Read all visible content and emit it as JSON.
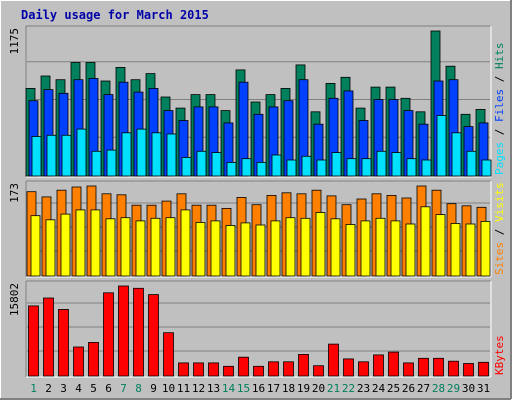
{
  "title": "Daily usage for March 2015",
  "colors": {
    "background": "#ffffff",
    "frame": "#c0c0c0",
    "panel": "#c0c0c0",
    "hits": "#00805c",
    "files": "#0040ff",
    "pages": "#00e0ff",
    "visits": "#ffff00",
    "sites": "#ff8000",
    "kbytes": "#ff0000",
    "day_weekday": "#000000",
    "day_weekend": "#00805c"
  },
  "chart_data": [
    {
      "type": "bar",
      "panel": "hits_files_pages",
      "ymax_label": "1175",
      "ylim": [
        0,
        1175
      ],
      "legend": [
        {
          "name": "Pages",
          "color": "#00e0ff"
        },
        {
          "name": "Files",
          "color": "#0040ff"
        },
        {
          "name": "Hits",
          "color": "#00805c"
        }
      ],
      "categories": [
        "1",
        "2",
        "3",
        "4",
        "5",
        "6",
        "7",
        "8",
        "9",
        "10",
        "11",
        "12",
        "13",
        "14",
        "15",
        "16",
        "17",
        "18",
        "19",
        "20",
        "21",
        "22",
        "23",
        "24",
        "25",
        "26",
        "27",
        "28",
        "29",
        "30",
        "31"
      ],
      "series": [
        {
          "name": "Hits",
          "values": [
            710,
            810,
            780,
            920,
            920,
            770,
            880,
            780,
            830,
            640,
            550,
            660,
            660,
            530,
            860,
            600,
            660,
            710,
            900,
            520,
            750,
            800,
            550,
            720,
            720,
            630,
            520,
            1175,
            890,
            500,
            540
          ]
        },
        {
          "name": "Files",
          "values": [
            610,
            700,
            670,
            780,
            790,
            660,
            760,
            680,
            710,
            530,
            450,
            560,
            560,
            430,
            760,
            500,
            560,
            610,
            780,
            420,
            630,
            690,
            450,
            620,
            620,
            530,
            420,
            770,
            780,
            400,
            430
          ]
        },
        {
          "name": "Pages",
          "values": [
            320,
            330,
            330,
            380,
            200,
            210,
            350,
            380,
            350,
            340,
            150,
            200,
            190,
            110,
            140,
            110,
            170,
            130,
            160,
            130,
            190,
            140,
            140,
            200,
            190,
            140,
            130,
            490,
            350,
            200,
            130
          ]
        }
      ]
    },
    {
      "type": "bar",
      "panel": "visits_sites",
      "ymax_label": "173",
      "ylim": [
        0,
        173
      ],
      "legend": [
        {
          "name": "Sites",
          "color": "#ff8000"
        },
        {
          "name": "Visits",
          "color": "#ffff00"
        }
      ],
      "categories": [
        "1",
        "2",
        "3",
        "4",
        "5",
        "6",
        "7",
        "8",
        "9",
        "10",
        "11",
        "12",
        "13",
        "14",
        "15",
        "16",
        "17",
        "18",
        "19",
        "20",
        "21",
        "22",
        "23",
        "24",
        "25",
        "26",
        "27",
        "28",
        "29",
        "30",
        "31"
      ],
      "series": [
        {
          "name": "Sites",
          "values": [
            162,
            152,
            165,
            171,
            173,
            158,
            156,
            136,
            136,
            144,
            158,
            136,
            136,
            130,
            151,
            137,
            155,
            160,
            158,
            165,
            154,
            137,
            148,
            158,
            155,
            150,
            173,
            165,
            139,
            135,
            132
          ]
        },
        {
          "name": "Visits",
          "values": [
            116,
            108,
            119,
            127,
            127,
            110,
            112,
            106,
            111,
            112,
            127,
            103,
            106,
            97,
            102,
            98,
            106,
            112,
            111,
            122,
            110,
            99,
            106,
            111,
            106,
            100,
            133,
            118,
            101,
            100,
            105
          ]
        }
      ]
    },
    {
      "type": "bar",
      "panel": "kbytes",
      "ymax_label": "15802",
      "ylim": [
        0,
        15802
      ],
      "legend": [
        {
          "name": "KBytes",
          "color": "#ff0000"
        }
      ],
      "categories": [
        "1",
        "2",
        "3",
        "4",
        "5",
        "6",
        "7",
        "8",
        "9",
        "10",
        "11",
        "12",
        "13",
        "14",
        "15",
        "16",
        "17",
        "18",
        "19",
        "20",
        "21",
        "22",
        "23",
        "24",
        "25",
        "26",
        "27",
        "28",
        "29",
        "30",
        "31"
      ],
      "series": [
        {
          "name": "KBytes",
          "values": [
            12300,
            13700,
            11700,
            5100,
            5900,
            14600,
            15802,
            15400,
            14300,
            7600,
            2300,
            2300,
            2300,
            1700,
            3300,
            1700,
            2500,
            2500,
            3800,
            1800,
            5600,
            3000,
            2500,
            3700,
            4200,
            2300,
            3100,
            3100,
            2600,
            2200,
            2400
          ]
        }
      ]
    }
  ],
  "day_labels": [
    {
      "text": "1",
      "weekend": true
    },
    {
      "text": "2",
      "weekend": false
    },
    {
      "text": "3",
      "weekend": false
    },
    {
      "text": "4",
      "weekend": false
    },
    {
      "text": "5",
      "weekend": false
    },
    {
      "text": "6",
      "weekend": false
    },
    {
      "text": "7",
      "weekend": true
    },
    {
      "text": "8",
      "weekend": true
    },
    {
      "text": "9",
      "weekend": false
    },
    {
      "text": "10",
      "weekend": false
    },
    {
      "text": "11",
      "weekend": false
    },
    {
      "text": "12",
      "weekend": false
    },
    {
      "text": "13",
      "weekend": false
    },
    {
      "text": "14",
      "weekend": true
    },
    {
      "text": "15",
      "weekend": true
    },
    {
      "text": "16",
      "weekend": false
    },
    {
      "text": "17",
      "weekend": false
    },
    {
      "text": "18",
      "weekend": false
    },
    {
      "text": "19",
      "weekend": false
    },
    {
      "text": "20",
      "weekend": false
    },
    {
      "text": "21",
      "weekend": true
    },
    {
      "text": "22",
      "weekend": true
    },
    {
      "text": "23",
      "weekend": false
    },
    {
      "text": "24",
      "weekend": false
    },
    {
      "text": "25",
      "weekend": false
    },
    {
      "text": "26",
      "weekend": false
    },
    {
      "text": "27",
      "weekend": false
    },
    {
      "text": "28",
      "weekend": true
    },
    {
      "text": "29",
      "weekend": true
    },
    {
      "text": "30",
      "weekend": false
    },
    {
      "text": "31",
      "weekend": false
    }
  ]
}
